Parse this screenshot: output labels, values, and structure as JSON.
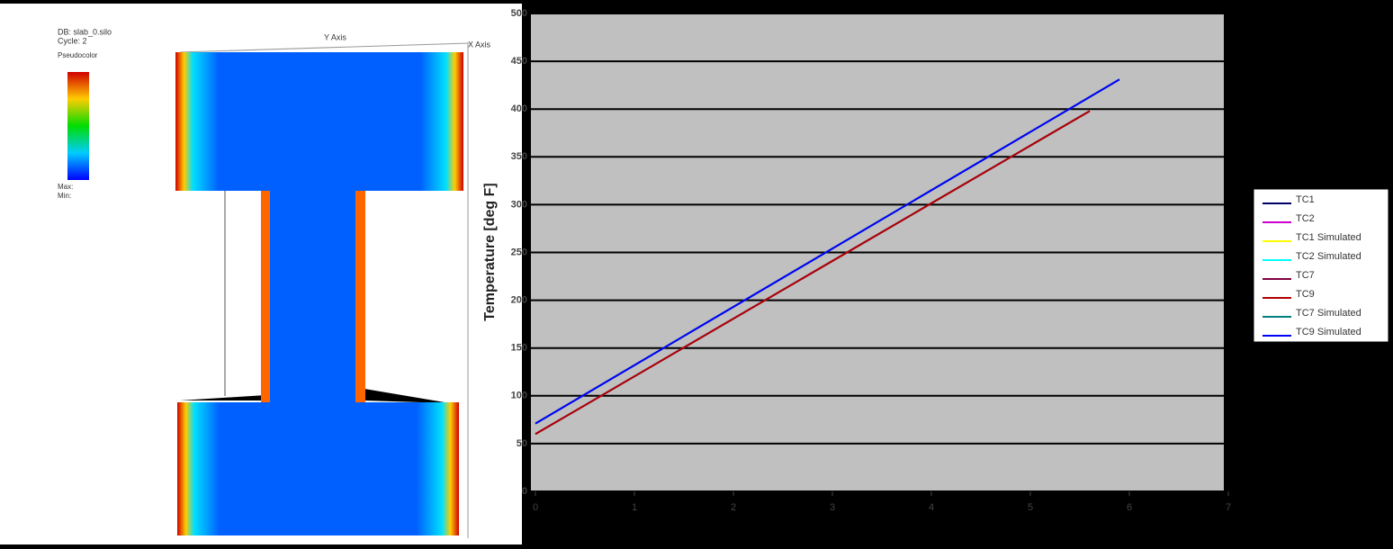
{
  "render": {
    "database": "DB: slab_0.silo",
    "cycle": "Cycle: 2",
    "plot": "Pseudocolor",
    "max": "Max:",
    "min": "Min:",
    "y_axis": "Y Axis",
    "x_axis": "X Axis"
  },
  "chart_data": {
    "type": "line",
    "y_label": "Temperature [deg F]",
    "xlim": [
      0,
      7
    ],
    "xticks": [
      0,
      1,
      2,
      3,
      4,
      5,
      6,
      7
    ],
    "ylim": [
      0,
      500
    ],
    "yticks": [
      0,
      50,
      100,
      150,
      200,
      250,
      300,
      350,
      400,
      450,
      500
    ],
    "grid": true,
    "legend": "right",
    "series": [
      {
        "name": "TC1",
        "color": "#000066",
        "x": [
          0,
          5.9
        ],
        "values": [
          71,
          431
        ]
      },
      {
        "name": "TC2",
        "color": "#cc00cc",
        "x": [
          0,
          5.6
        ],
        "values": [
          60,
          398
        ]
      },
      {
        "name": "TC1 Simulated",
        "color": "#ffff00",
        "x": [
          0,
          5.9
        ],
        "values": [
          71,
          431
        ]
      },
      {
        "name": "TC2 Simulated",
        "color": "#00ffff",
        "x": [
          0,
          5.6
        ],
        "values": [
          60,
          398
        ]
      },
      {
        "name": "TC7",
        "color": "#800040",
        "x": [
          0,
          5.6
        ],
        "values": [
          60,
          398
        ]
      },
      {
        "name": "TC9",
        "color": "#b00000",
        "x": [
          0,
          5.6
        ],
        "values": [
          60,
          398
        ]
      },
      {
        "name": "TC7 Simulated",
        "color": "#008080",
        "x": [
          0,
          5.9
        ],
        "values": [
          71,
          431
        ]
      },
      {
        "name": "TC9 Simulated",
        "color": "#0000ff",
        "x": [
          0,
          5.9
        ],
        "values": [
          71,
          431
        ]
      }
    ]
  }
}
